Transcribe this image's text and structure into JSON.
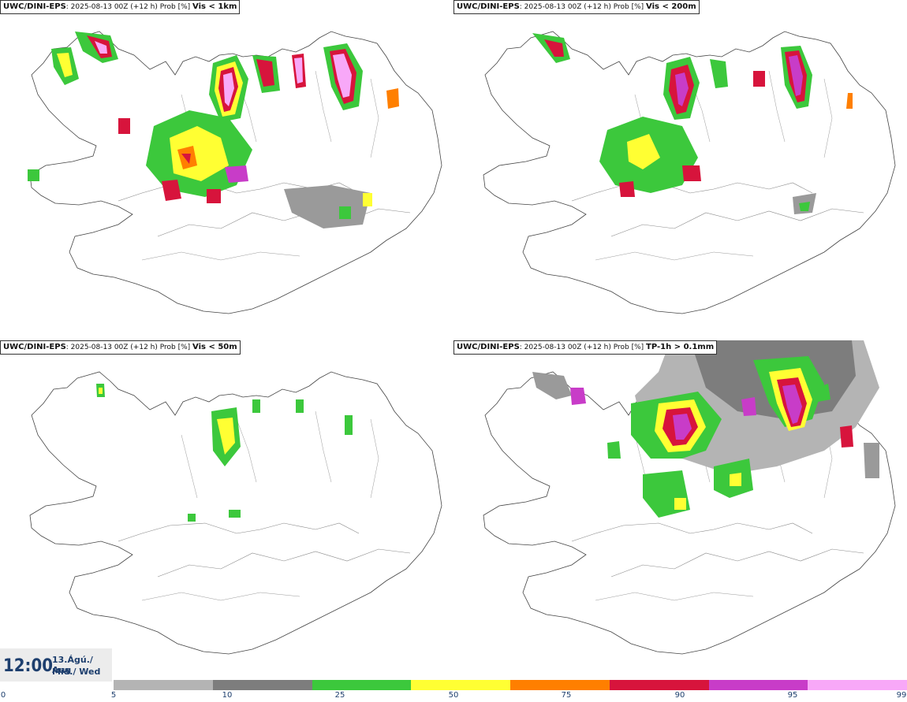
{
  "panels": [
    {
      "id": "vis1km",
      "model": "UWC/DINI-EPS",
      "run": ": 2025-08-13 00Z (+12 h) Prob [%]",
      "variable": "Vis < 1km"
    },
    {
      "id": "vis200m",
      "model": "UWC/DINI-EPS",
      "run": ": 2025-08-13 00Z (+12 h) Prob [%]",
      "variable": "Vis < 200m"
    },
    {
      "id": "vis50m",
      "model": "UWC/DINI-EPS",
      "run": ": 2025-08-13 00Z (+12 h) Prob [%]",
      "variable": "Vis < 50m"
    },
    {
      "id": "tp1h",
      "model": "UWC/DINI-EPS",
      "run": ": 2025-08-13 00Z (+12 h) Prob [%]",
      "variable": "TP-1h > 0.1mm"
    }
  ],
  "time": {
    "clock": "12:00",
    "date_line1": "13.Ágú./ Aug",
    "date_line2": "Mið./ Wed"
  },
  "legend": {
    "ticks": [
      "0",
      "5",
      "10",
      "25",
      "50",
      "75",
      "90",
      "95",
      "99"
    ],
    "colors": [
      "#b4b4b4",
      "#7d7d7d",
      "#3cc83c",
      "#ffff33",
      "#ff7f00",
      "#d7143c",
      "#c83cc8",
      "#f8a8f8"
    ]
  }
}
